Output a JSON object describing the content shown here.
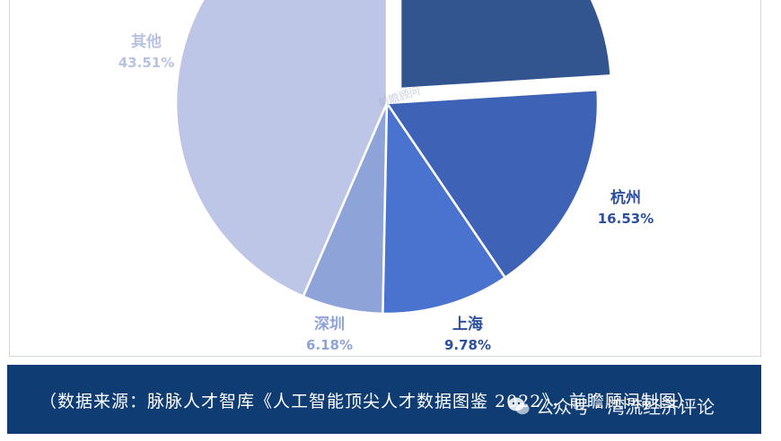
{
  "chart_data": {
    "type": "pie",
    "slices": [
      {
        "name": "其他",
        "value": 43.51,
        "label": "43.51%",
        "color": "#bdc6e6"
      },
      {
        "name": "深圳",
        "value": 6.18,
        "label": "6.18%",
        "color": "#8ea3d8"
      },
      {
        "name": "上海",
        "value": 9.78,
        "label": "9.78%",
        "color": "#4a73cf"
      },
      {
        "name": "杭州",
        "value": 16.53,
        "label": "16.53%",
        "color": "#3e63b6"
      },
      {
        "name": "",
        "value": 24.0,
        "label": "",
        "color": "#32548f"
      }
    ],
    "exploded_slice": "",
    "watermark_text": "前瞻顾问"
  },
  "caption": {
    "text": "（数据来源：脉脉人才智库《人工智能顶尖人才数据图鉴 2022》，前瞻顾问制图）",
    "bg_color": "#0f3d73"
  },
  "wechat": {
    "icon": "wechat-icon",
    "text": "公众号 · 湾流经济评论"
  }
}
